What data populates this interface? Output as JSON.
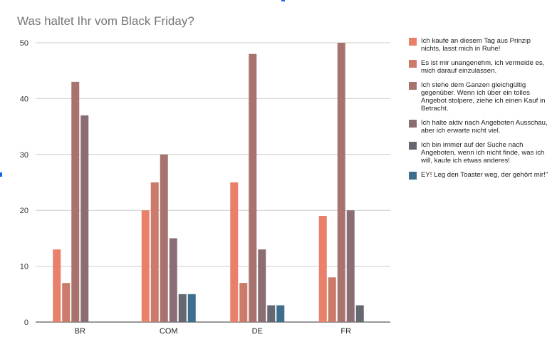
{
  "chart_data": {
    "type": "bar",
    "title": "Was haltet Ihr vom Black Friday?",
    "categories": [
      "BR",
      "COM",
      "DE",
      "FR"
    ],
    "ylim": [
      0,
      50
    ],
    "yticks": [
      0,
      10,
      20,
      30,
      40,
      50
    ],
    "ytick_labels": [
      "0",
      "10",
      "20",
      "30",
      "40",
      "50"
    ],
    "xlabel": "",
    "ylabel": "",
    "grid": true,
    "legend_position": "right",
    "series": [
      {
        "name": "Ich kaufe an diesem Tag aus Prinzip nichts, lasst mich in Ruhe!",
        "color": "#e8806a",
        "values": [
          13,
          20,
          25,
          19
        ]
      },
      {
        "name": "Es ist mir unangenehm, ich vermeide es, mich darauf einzulassen.",
        "color": "#cc7a6a",
        "values": [
          7,
          25,
          7,
          8
        ]
      },
      {
        "name": "Ich stehe dem Ganzen gleichgültig gegenüber. Wenn ich über ein tolles Angebot stolpere, ziehe ich einen Kauf in Betracht.",
        "color": "#a8736f",
        "values": [
          43,
          30,
          48,
          50
        ]
      },
      {
        "name": "Ich halte aktiv nach Angeboten Ausschau, aber ich erwarte nicht viel.",
        "color": "#8a6e74",
        "values": [
          37,
          15,
          13,
          20
        ]
      },
      {
        "name": "Ich bin immer auf der Suche nach Angeboten, wenn ich nicht finde, was ich will, kaufe ich etwas anderes!",
        "color": "#656870",
        "values": [
          0,
          5,
          3,
          3
        ]
      },
      {
        "name": "EY! Leg den Toaster weg, der gehört mir!\"",
        "color": "#3d6e8e",
        "values": [
          0,
          5,
          3,
          0
        ]
      }
    ]
  }
}
